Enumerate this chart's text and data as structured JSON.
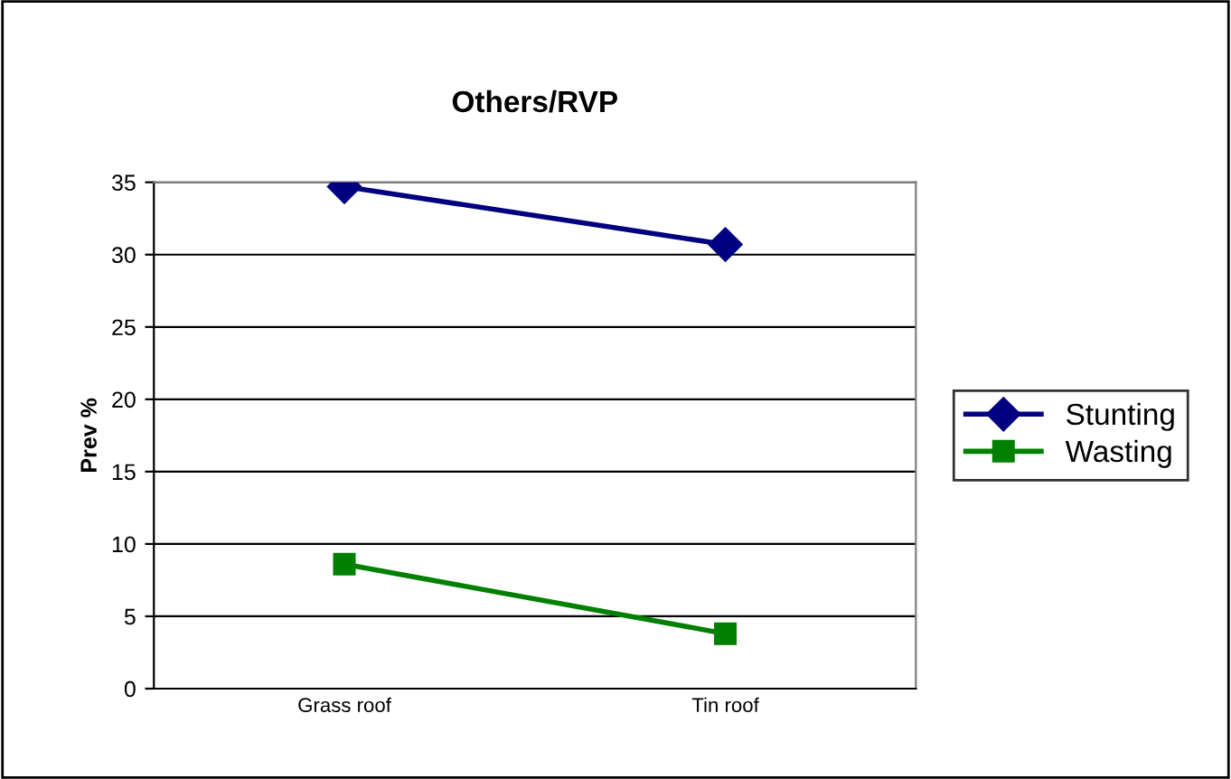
{
  "chart_data": {
    "type": "line",
    "title": "Others/RVP",
    "ylabel": "Prev %",
    "categories": [
      "Grass roof",
      "Tin roof"
    ],
    "series": [
      {
        "name": "Stunting",
        "color": "#000080",
        "marker": "diamond",
        "values": [
          34.7,
          30.7
        ]
      },
      {
        "name": "Wasting",
        "color": "#008000",
        "marker": "square",
        "values": [
          8.6,
          3.8
        ]
      }
    ],
    "ylim": [
      0,
      35
    ],
    "yticks": [
      0,
      5,
      10,
      15,
      20,
      25,
      30,
      35
    ],
    "grid": "y",
    "legend": "right",
    "line_style": "solid"
  }
}
